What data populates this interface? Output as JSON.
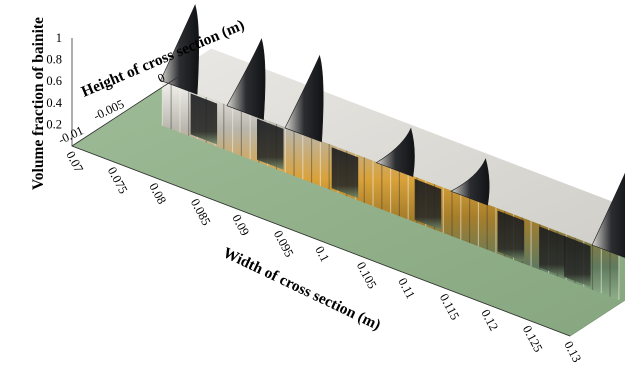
{
  "chart_data": {
    "type": "surface",
    "title": "",
    "xlabel": "Width of cross section (m)",
    "ylabel": "Height of cross section (m)",
    "zlabel": "Volume fraction of bainite",
    "x_ticks": [
      "0.07",
      "0.075",
      "0.08",
      "0.085",
      "0.09",
      "0.095",
      "0.1",
      "0.105",
      "0.11",
      "0.115",
      "0.12",
      "0.125",
      "0.13"
    ],
    "y_ticks": [
      "-0.01",
      "-0.005",
      "0"
    ],
    "z_ticks": [
      "0.2",
      "0.4",
      "0.6",
      "0.8",
      "1"
    ],
    "xlim": [
      0.07,
      0.13
    ],
    "ylim": [
      -0.012,
      0.001
    ],
    "zlim": [
      0,
      1
    ],
    "base_value": 0,
    "surface_color_low": "#8fb08a",
    "colormap": [
      "#1b1d20",
      "#6b6557",
      "#c9c3b4",
      "#d49a1f",
      "#f6f4ee"
    ],
    "peaks": [
      {
        "x": 0.0755,
        "z": 1.0
      },
      {
        "x": 0.0835,
        "z": 0.92
      },
      {
        "x": 0.0905,
        "z": 0.97
      },
      {
        "x": 0.1015,
        "z": 0.62
      },
      {
        "x": 0.1105,
        "z": 0.6
      },
      {
        "x": 0.1275,
        "z": 1.0
      }
    ]
  }
}
